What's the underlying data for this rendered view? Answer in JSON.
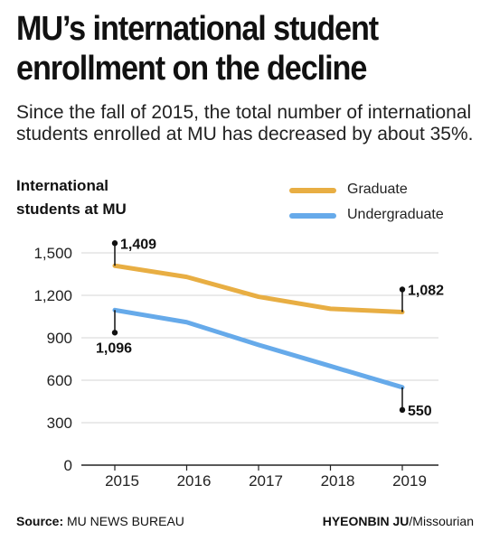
{
  "header": {
    "title_line1": "MU’s international student",
    "title_line2": "enrollment on the decline",
    "subtitle": "Since the fall of 2015, the total number of international students enrolled at MU has decreased by about 35%."
  },
  "footer": {
    "source_label": "Source:",
    "source_value": "MU NEWS BUREAU",
    "credit_name": "HYEONBIN JU",
    "credit_outlet": "/Missourian"
  },
  "chart_data": {
    "type": "line",
    "ylabel_line1": "International",
    "ylabel_line2": "students at MU",
    "x": [
      "2015",
      "2016",
      "2017",
      "2018",
      "2019"
    ],
    "ylim": [
      0,
      1500
    ],
    "yticks": [
      0,
      300,
      600,
      900,
      1200,
      1500
    ],
    "ytick_labels": [
      "0",
      "300",
      "600",
      "900",
      "1,200",
      "1,500"
    ],
    "grid": true,
    "legend_position": "top-right",
    "series": [
      {
        "name": "Graduate",
        "color": "#e8ae43",
        "values": [
          1409,
          1330,
          1190,
          1105,
          1082
        ]
      },
      {
        "name": "Undergraduate",
        "color": "#66aaea",
        "values": [
          1096,
          1010,
          850,
          700,
          550
        ]
      }
    ],
    "annotations": [
      {
        "series": 0,
        "index": 0,
        "text": "1,409",
        "direction": "up"
      },
      {
        "series": 1,
        "index": 0,
        "text": "1,096",
        "direction": "down"
      },
      {
        "series": 0,
        "index": 4,
        "text": "1,082",
        "direction": "up"
      },
      {
        "series": 1,
        "index": 4,
        "text": "550",
        "direction": "down"
      }
    ]
  }
}
